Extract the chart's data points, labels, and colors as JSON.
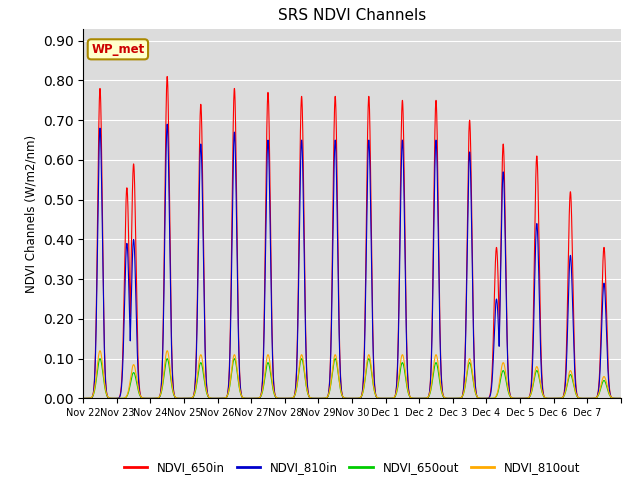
{
  "title": "SRS NDVI Channels",
  "ylabel": "NDVI Channels (W/m2/nm)",
  "ylim": [
    0.0,
    0.93
  ],
  "yticks": [
    0.0,
    0.1,
    0.2,
    0.3,
    0.4,
    0.5,
    0.6,
    0.7,
    0.8,
    0.9
  ],
  "bg_color": "#dcdcdc",
  "fig_bg": "#ffffff",
  "annotation_text": "WP_met",
  "annotation_bg": "#ffffcc",
  "annotation_edge": "#aa8800",
  "annotation_text_color": "#cc0000",
  "line_colors": {
    "NDVI_650in": "#ff0000",
    "NDVI_810in": "#0000cc",
    "NDVI_650out": "#00cc00",
    "NDVI_810out": "#ffaa00"
  },
  "spike_centers": [
    0.5,
    1.5,
    2.5,
    3.5,
    4.5,
    5.5,
    6.5,
    7.5,
    8.5,
    9.5,
    10.5,
    11.5,
    12.5,
    13.5,
    14.5,
    15.5
  ],
  "peak_650in": [
    0.78,
    0.59,
    0.81,
    0.74,
    0.78,
    0.77,
    0.76,
    0.76,
    0.76,
    0.75,
    0.75,
    0.7,
    0.64,
    0.61,
    0.52,
    0.38
  ],
  "peak_810in": [
    0.68,
    0.4,
    0.69,
    0.64,
    0.67,
    0.65,
    0.65,
    0.65,
    0.65,
    0.65,
    0.65,
    0.62,
    0.57,
    0.44,
    0.36,
    0.29
  ],
  "peak_650out": [
    0.1,
    0.065,
    0.1,
    0.09,
    0.1,
    0.09,
    0.1,
    0.1,
    0.1,
    0.09,
    0.09,
    0.09,
    0.07,
    0.07,
    0.06,
    0.045
  ],
  "peak_810out": [
    0.12,
    0.085,
    0.12,
    0.11,
    0.11,
    0.11,
    0.11,
    0.11,
    0.11,
    0.11,
    0.11,
    0.1,
    0.09,
    0.08,
    0.07,
    0.055
  ],
  "shoulder_650in": [
    0.53,
    0.38
  ],
  "shoulder_810in": [
    0.25,
    0.15
  ],
  "shoulder_centers": [
    1.35,
    12.35
  ],
  "n_days": 16,
  "points_per_day": 500,
  "sigma": 0.07,
  "sigma_out": 0.09,
  "xtick_labels": [
    "Nov 22",
    "Nov 23",
    "Nov 24",
    "Nov 25",
    "Nov 26",
    "Nov 27",
    "Nov 28",
    "Nov 29",
    "Nov 30",
    "Dec 1",
    "Dec 2",
    "Dec 3",
    "Dec 4",
    "Dec 5",
    "Dec 6",
    "Dec 7"
  ],
  "grid_color": "#ffffff",
  "grid_lw": 0.8
}
